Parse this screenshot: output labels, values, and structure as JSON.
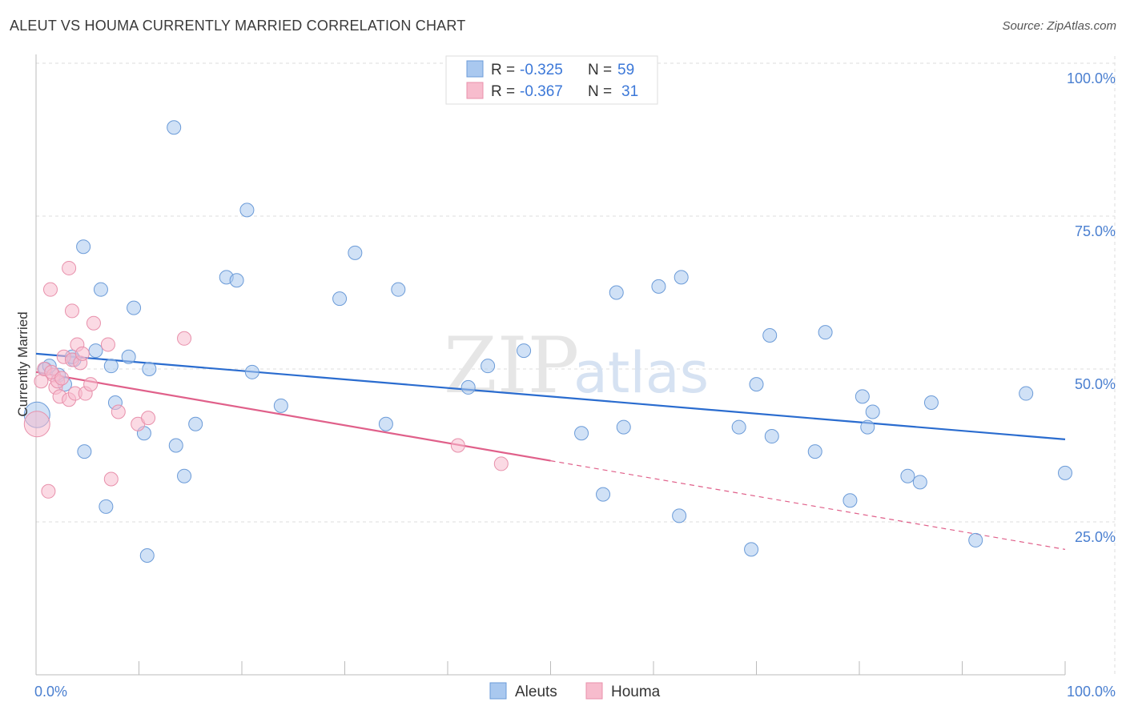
{
  "title": "ALEUT VS HOUMA CURRENTLY MARRIED CORRELATION CHART",
  "source": "Source: ZipAtlas.com",
  "watermark": {
    "zip": "ZIP",
    "atlas": "atlas"
  },
  "colors": {
    "aleut_fill": "#a9c8ef",
    "aleut_stroke": "#6b9bd8",
    "aleut_line": "#2a6ccf",
    "houma_fill": "#f7bccd",
    "houma_stroke": "#e890ab",
    "houma_line": "#e0608a",
    "grid": "#dddddd",
    "tick_text": "#4a7fd0"
  },
  "legend": {
    "rows": [
      {
        "r_label": "R = ",
        "r_value": "-0.325",
        "n_label": "N = ",
        "n_value": "59"
      },
      {
        "r_label": "R = ",
        "r_value": "-0.367",
        "n_label": "N = ",
        "n_value": "31"
      }
    ]
  },
  "chart_data": {
    "type": "scatter",
    "title": "ALEUT VS HOUMA CURRENTLY MARRIED CORRELATION CHART",
    "xlabel": "",
    "ylabel": "Currently Married",
    "xlim": [
      0,
      100
    ],
    "ylim": [
      0,
      100
    ],
    "x_tick_labels": [
      "0.0%",
      "100.0%"
    ],
    "y_tick_labels": [
      {
        "value": 100,
        "label": "100.0%"
      },
      {
        "value": 75,
        "label": "75.0%"
      },
      {
        "value": 50,
        "label": "50.0%"
      },
      {
        "value": 25,
        "label": "25.0%"
      }
    ],
    "series": [
      {
        "name": "Aleuts",
        "points": [
          [
            0.1,
            42.5
          ],
          [
            0.9,
            50.0
          ],
          [
            1.3,
            50.5
          ],
          [
            2.2,
            49.0
          ],
          [
            2.8,
            47.5
          ],
          [
            3.7,
            51.5
          ],
          [
            3.5,
            52.0
          ],
          [
            4.6,
            70.0
          ],
          [
            4.7,
            36.5
          ],
          [
            5.8,
            53.0
          ],
          [
            6.3,
            63.0
          ],
          [
            6.8,
            27.5
          ],
          [
            7.3,
            50.5
          ],
          [
            7.7,
            44.5
          ],
          [
            9.0,
            52.0
          ],
          [
            9.5,
            60.0
          ],
          [
            10.5,
            39.5
          ],
          [
            11.0,
            50.0
          ],
          [
            10.8,
            19.5
          ],
          [
            13.4,
            89.5
          ],
          [
            13.6,
            37.5
          ],
          [
            14.4,
            32.5
          ],
          [
            15.5,
            41.0
          ],
          [
            18.5,
            65.0
          ],
          [
            19.5,
            64.5
          ],
          [
            20.5,
            76.0
          ],
          [
            21.0,
            49.5
          ],
          [
            23.8,
            44.0
          ],
          [
            29.5,
            61.5
          ],
          [
            31.0,
            69.0
          ],
          [
            34.0,
            41.0
          ],
          [
            35.2,
            63.0
          ],
          [
            43.9,
            50.5
          ],
          [
            47.4,
            53.0
          ],
          [
            53.0,
            39.5
          ],
          [
            55.1,
            29.5
          ],
          [
            56.4,
            62.5
          ],
          [
            57.1,
            40.5
          ],
          [
            60.5,
            63.5
          ],
          [
            62.5,
            26.0
          ],
          [
            62.7,
            65.0
          ],
          [
            68.3,
            40.5
          ],
          [
            69.5,
            20.5
          ],
          [
            70.0,
            47.5
          ],
          [
            71.3,
            55.5
          ],
          [
            71.5,
            39.0
          ],
          [
            75.7,
            36.5
          ],
          [
            76.7,
            56.0
          ],
          [
            79.1,
            28.5
          ],
          [
            80.3,
            45.5
          ],
          [
            80.8,
            40.5
          ],
          [
            81.3,
            43.0
          ],
          [
            84.7,
            32.5
          ],
          [
            85.9,
            31.5
          ],
          [
            87.0,
            44.5
          ],
          [
            91.3,
            22.0
          ],
          [
            96.2,
            46.0
          ],
          [
            100.0,
            33.0
          ],
          [
            42.0,
            47.0
          ]
        ]
      },
      {
        "name": "Houma",
        "points": [
          [
            0.1,
            41.0
          ],
          [
            0.5,
            48.0
          ],
          [
            0.8,
            50.0
          ],
          [
            1.2,
            30.0
          ],
          [
            1.4,
            63.0
          ],
          [
            1.7,
            49.0
          ],
          [
            1.9,
            47.0
          ],
          [
            2.1,
            48.0
          ],
          [
            2.3,
            45.5
          ],
          [
            2.7,
            52.0
          ],
          [
            3.2,
            45.0
          ],
          [
            3.2,
            66.5
          ],
          [
            3.5,
            51.5
          ],
          [
            3.5,
            59.5
          ],
          [
            3.8,
            46.0
          ],
          [
            4.0,
            54.0
          ],
          [
            4.3,
            51.0
          ],
          [
            4.5,
            52.5
          ],
          [
            4.8,
            46.0
          ],
          [
            5.3,
            47.5
          ],
          [
            5.6,
            57.5
          ],
          [
            7.0,
            54.0
          ],
          [
            7.3,
            32.0
          ],
          [
            8.0,
            43.0
          ],
          [
            9.9,
            41.0
          ],
          [
            10.9,
            42.0
          ],
          [
            14.4,
            55.0
          ],
          [
            41.0,
            37.5
          ],
          [
            45.2,
            34.5
          ],
          [
            1.5,
            49.5
          ],
          [
            2.5,
            48.5
          ]
        ]
      }
    ],
    "trendlines": [
      {
        "series": "Aleuts",
        "x": [
          0,
          100
        ],
        "y": [
          52.5,
          38.5
        ],
        "style": "solid"
      },
      {
        "series": "Houma",
        "x": [
          0,
          50
        ],
        "y": [
          49.5,
          35.0
        ],
        "style": "solid"
      },
      {
        "series": "Houma",
        "x": [
          50,
          100
        ],
        "y": [
          35.0,
          20.5
        ],
        "style": "dashed"
      }
    ],
    "legend": [
      "Aleuts",
      "Houma"
    ],
    "grid": true
  }
}
